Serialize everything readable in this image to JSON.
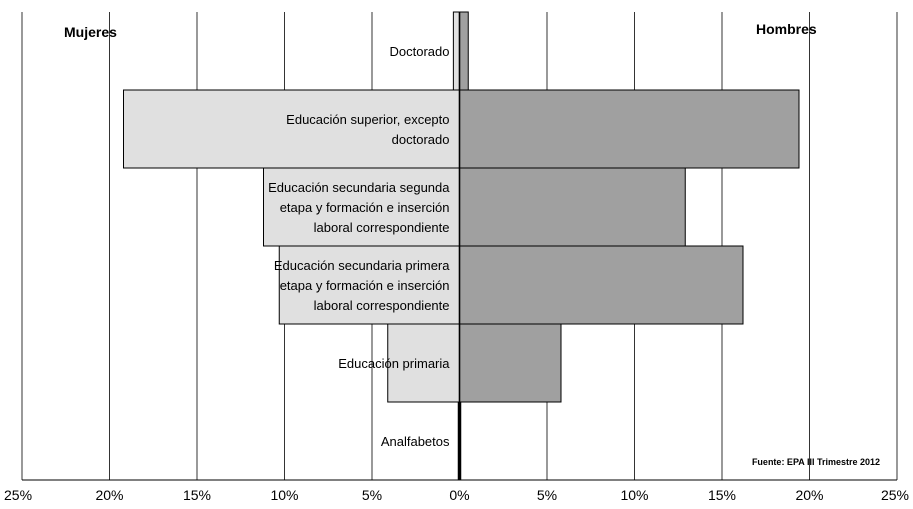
{
  "chart_data": {
    "type": "bar",
    "orientation": "horizontal-butterfly",
    "categories": [
      "Doctorado",
      "Educación superior, excepto doctorado",
      "Educación secundaria segunda etapa y formación e inserción laboral correspondiente",
      "Educación secundaria primera etapa y formación e inserción laboral correspondiente",
      "Educación primaria",
      "Analfabetos"
    ],
    "category_label_lines": [
      [
        "Doctorado"
      ],
      [
        "Educación superior, excepto",
        "doctorado"
      ],
      [
        "Educación secundaria segunda",
        "etapa y formación e inserción",
        "laboral correspondiente"
      ],
      [
        "Educación secundaria primera",
        "etapa y formación e inserción",
        "laboral correspondiente"
      ],
      [
        "Educación primaria"
      ],
      [
        "Analfabetos"
      ]
    ],
    "series": [
      {
        "name": "Mujeres",
        "side": "left",
        "color": "#e0e0e0",
        "values": [
          0.35,
          19.2,
          11.2,
          10.3,
          4.1,
          0.1
        ]
      },
      {
        "name": "Hombres",
        "side": "right",
        "color": "#a0a0a0",
        "values": [
          0.5,
          19.4,
          12.9,
          16.2,
          5.8,
          0.1
        ]
      }
    ],
    "xlim": [
      -25,
      25
    ],
    "xticks": [
      "25%",
      "20%",
      "15%",
      "10%",
      "5%",
      "0%",
      "5%",
      "10%",
      "15%",
      "20%",
      "25%"
    ],
    "grid": "vertical",
    "left_title": "Mujeres",
    "right_title": "Hombres",
    "annotation": "Fuente: EPA III Trimestre 2012"
  }
}
